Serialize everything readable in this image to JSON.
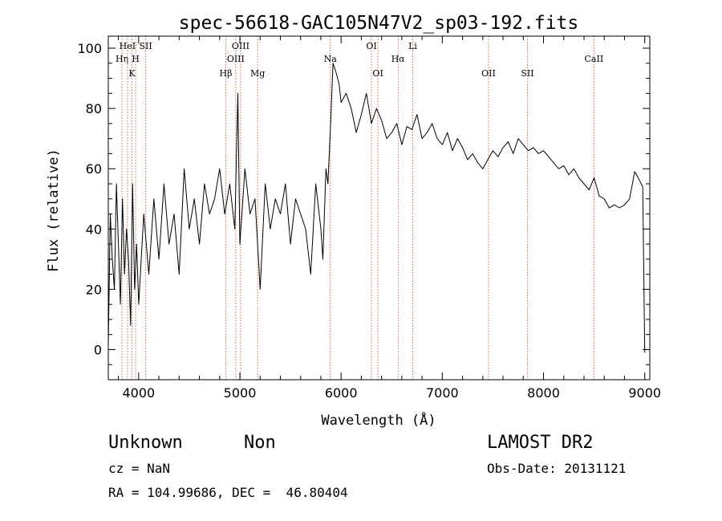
{
  "chart_data": {
    "type": "line",
    "title": "spec-56618-GAC105N47V2_sp03-192.fits",
    "xlabel": "Wavelength (Å)",
    "ylabel": "Flux (relative)",
    "xlim": [
      3700,
      9050
    ],
    "ylim": [
      -10,
      104
    ],
    "xticks": [
      4000,
      5000,
      6000,
      7000,
      8000,
      9000
    ],
    "yticks": [
      0,
      20,
      40,
      60,
      80,
      100
    ],
    "grid": false,
    "line_color": "#000000",
    "marker_color": "#a0522d",
    "series": [
      {
        "x": [
          3700,
          3720,
          3740,
          3760,
          3780,
          3800,
          3820,
          3840,
          3860,
          3880,
          3900,
          3920,
          3940,
          3960,
          3980,
          4000,
          4050,
          4100,
          4150,
          4200,
          4250,
          4300,
          4350,
          4400,
          4450,
          4500,
          4550,
          4600,
          4650,
          4700,
          4750,
          4800,
          4850,
          4900,
          4950,
          4980,
          5000,
          5050,
          5100,
          5150,
          5200,
          5250,
          5300,
          5350,
          5400,
          5450,
          5500,
          5550,
          5600,
          5650,
          5700,
          5750,
          5800,
          5820,
          5850,
          5870,
          5900,
          5920,
          5950,
          5980,
          6000,
          6050,
          6100,
          6150,
          6200,
          6250,
          6300,
          6350,
          6400,
          6450,
          6500,
          6550,
          6600,
          6650,
          6700,
          6750,
          6800,
          6850,
          6900,
          6950,
          7000,
          7050,
          7100,
          7150,
          7200,
          7250,
          7300,
          7350,
          7400,
          7450,
          7500,
          7550,
          7600,
          7650,
          7700,
          7750,
          7800,
          7850,
          7900,
          7950,
          8000,
          8050,
          8100,
          8150,
          8200,
          8250,
          8300,
          8350,
          8400,
          8450,
          8500,
          8550,
          8600,
          8650,
          8700,
          8750,
          8800,
          8850,
          8900,
          8920,
          8950,
          8980,
          9000
        ],
        "y": [
          2,
          45,
          30,
          20,
          55,
          35,
          15,
          50,
          25,
          40,
          30,
          8,
          55,
          20,
          35,
          15,
          45,
          25,
          50,
          30,
          55,
          35,
          45,
          25,
          60,
          40,
          50,
          35,
          55,
          45,
          50,
          60,
          45,
          55,
          40,
          85,
          35,
          60,
          45,
          50,
          20,
          55,
          40,
          50,
          45,
          55,
          35,
          50,
          45,
          40,
          25,
          55,
          40,
          30,
          60,
          55,
          78,
          95,
          92,
          88,
          82,
          85,
          80,
          72,
          78,
          85,
          75,
          80,
          76,
          70,
          72,
          75,
          68,
          74,
          73,
          78,
          70,
          72,
          75,
          70,
          68,
          72,
          66,
          70,
          67,
          63,
          65,
          62,
          60,
          63,
          66,
          64,
          67,
          69,
          65,
          70,
          68,
          66,
          67,
          65,
          66,
          64,
          62,
          60,
          61,
          58,
          60,
          57,
          55,
          53,
          57,
          51,
          50,
          47,
          48,
          47,
          48,
          50,
          59,
          58,
          56,
          54,
          -1
        ]
      }
    ],
    "lines": [
      {
        "x": 3835,
        "label": "Hη",
        "row": 2
      },
      {
        "x": 3889,
        "label": "HeI",
        "row": 1
      },
      {
        "x": 3934,
        "label": "K",
        "row": 3
      },
      {
        "x": 3970,
        "label": "H",
        "row": 2
      },
      {
        "x": 4069,
        "label": "SII",
        "row": 1
      },
      {
        "x": 4861,
        "label": "Hβ",
        "row": 3
      },
      {
        "x": 4959,
        "label": "OIII",
        "row": 2
      },
      {
        "x": 5007,
        "label": "OIII",
        "row": 1
      },
      {
        "x": 5175,
        "label": "Mg",
        "row": 3
      },
      {
        "x": 5893,
        "label": "Na",
        "row": 2
      },
      {
        "x": 6300,
        "label": "OI",
        "row": 1
      },
      {
        "x": 6364,
        "label": "OI",
        "row": 3
      },
      {
        "x": 6563,
        "label": "Hα",
        "row": 2
      },
      {
        "x": 6708,
        "label": "Li",
        "row": 1
      },
      {
        "x": 7457,
        "label": "OII",
        "row": 3
      },
      {
        "x": 7841,
        "label": "SII",
        "row": 3
      },
      {
        "x": 8498,
        "label": "CaII",
        "row": 2
      }
    ]
  },
  "info": {
    "class_label": "Unknown",
    "subclass_label": "Non",
    "survey": "LAMOST DR2",
    "cz": "cz = NaN",
    "obs_date": "Obs-Date: 20131121",
    "coords": "RA = 104.99686, DEC =  46.80404"
  }
}
